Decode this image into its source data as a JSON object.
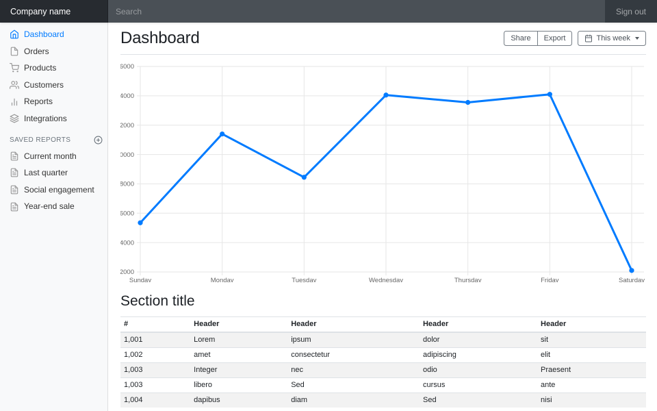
{
  "navbar": {
    "brand": "Company name",
    "search": {
      "placeholder": "Search"
    },
    "sign_out_label": "Sign out"
  },
  "sidebar": {
    "items": [
      {
        "label": "Dashboard",
        "icon": "home",
        "active": true
      },
      {
        "label": "Orders",
        "icon": "file",
        "active": false
      },
      {
        "label": "Products",
        "icon": "shopping-cart",
        "active": false
      },
      {
        "label": "Customers",
        "icon": "users",
        "active": false
      },
      {
        "label": "Reports",
        "icon": "bar-chart-2",
        "active": false
      },
      {
        "label": "Integrations",
        "icon": "layers",
        "active": false
      }
    ],
    "saved_reports": {
      "heading": "Saved reports",
      "add_icon": "plus-circle",
      "items": [
        {
          "label": "Current month",
          "icon": "file-text"
        },
        {
          "label": "Last quarter",
          "icon": "file-text"
        },
        {
          "label": "Social engagement",
          "icon": "file-text"
        },
        {
          "label": "Year-end sale",
          "icon": "file-text"
        }
      ]
    }
  },
  "header": {
    "title": "Dashboard",
    "buttons": {
      "share": "Share",
      "export": "Export",
      "period": "This week",
      "period_icon": "calendar"
    }
  },
  "chart_data": {
    "type": "line",
    "title": "",
    "xlabel": "",
    "ylabel": "",
    "x": [
      "Sunday",
      "Monday",
      "Tuesday",
      "Wednesday",
      "Thursday",
      "Friday",
      "Saturday"
    ],
    "values": [
      15350,
      21400,
      18450,
      24050,
      23550,
      24100,
      12100
    ],
    "ylim": [
      12000,
      26000
    ],
    "ytick_step": 2000,
    "grid": true,
    "legend": false,
    "line_color": "#007bff",
    "point_color": "#007bff"
  },
  "section": {
    "title": "Section title",
    "table": {
      "headers": [
        "#",
        "Header",
        "Header",
        "Header",
        "Header"
      ],
      "col_widths": [
        "13.3%",
        "18.5%",
        "25.1%",
        "22.4%",
        "20.7%"
      ],
      "rows": [
        [
          "1,001",
          "Lorem",
          "ipsum",
          "dolor",
          "sit"
        ],
        [
          "1,002",
          "amet",
          "consectetur",
          "adipiscing",
          "elit"
        ],
        [
          "1,003",
          "Integer",
          "nec",
          "odio",
          "Praesent"
        ],
        [
          "1,003",
          "libero",
          "Sed",
          "cursus",
          "ante"
        ],
        [
          "1,004",
          "dapibus",
          "diam",
          "Sed",
          "nisi"
        ]
      ]
    }
  },
  "colors": {
    "accent": "#007bff",
    "navbar_bg": "#343a40",
    "navbar_brand_bg": "#272b30",
    "search_bg": "#4a5056",
    "sidebar_bg": "#f8f9fa",
    "icon_gray": "#999999",
    "grid_line": "#e6e6e6"
  }
}
